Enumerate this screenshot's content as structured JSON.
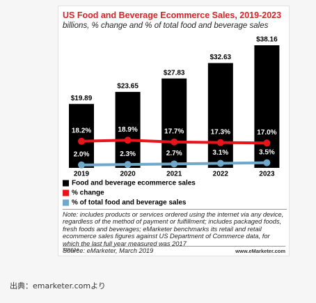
{
  "chart_data": {
    "type": "bar",
    "title": "US Food and Beverage Ecommerce Sales, 2019-2023",
    "subtitle": "billions, % change and % of total food and beverage sales",
    "categories": [
      "2019",
      "2020",
      "2021",
      "2022",
      "2023"
    ],
    "series": [
      {
        "name": "Food and beverage ecommerce sales",
        "type": "bar",
        "color": "#000000",
        "values": [
          19.89,
          23.65,
          27.83,
          32.63,
          38.16
        ],
        "value_labels": [
          "$19.89",
          "$23.65",
          "$27.83",
          "$32.63",
          "$38.16"
        ]
      },
      {
        "name": "% change",
        "type": "line",
        "color": "#e8141c",
        "values": [
          18.2,
          18.9,
          17.7,
          17.3,
          17.0
        ],
        "value_labels": [
          "18.2%",
          "18.9%",
          "17.7%",
          "17.3%",
          "17.0%"
        ]
      },
      {
        "name": "% of total food and beverage sales",
        "type": "line",
        "color": "#6fa8c8",
        "values": [
          2.0,
          2.3,
          2.7,
          3.1,
          3.5
        ],
        "value_labels": [
          "2.0%",
          "2.3%",
          "2.7%",
          "3.1%",
          "3.5%"
        ]
      }
    ],
    "note": "Note: includes products or services ordered using the internet via any device, regardless of the method of payment or fulfillment; includes packaged foods, fresh foods and beverages; eMarketer benchmarks its retail and retail ecommerce sales figures against US Department of Commerce data, for which the last full year measured was 2017",
    "source": "Source: eMarketer, March 2019",
    "chart_id": "245624",
    "logo": "www.eMarketer.com"
  },
  "caption": "出典：emarketer.comより"
}
